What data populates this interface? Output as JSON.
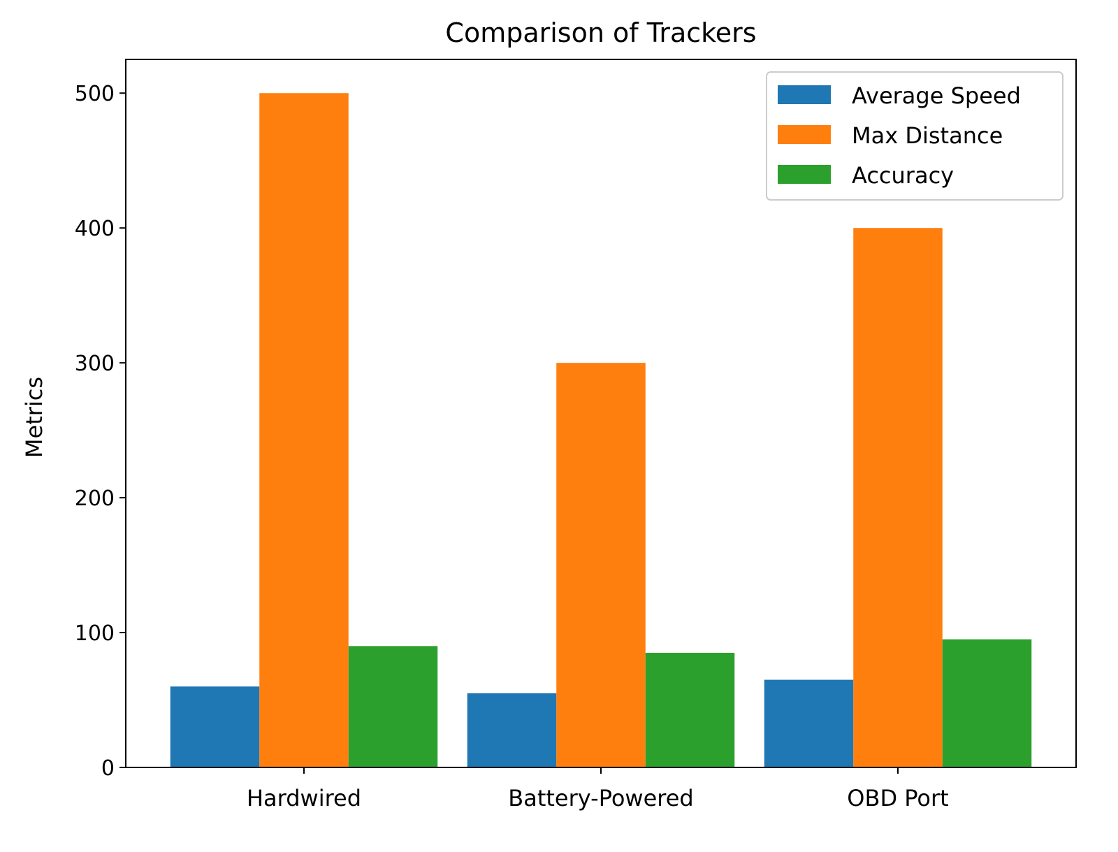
{
  "chart_data": {
    "type": "bar",
    "title": "Comparison of Trackers",
    "xlabel": "",
    "ylabel": "Metrics",
    "categories": [
      "Hardwired",
      "Battery-Powered",
      "OBD Port"
    ],
    "series": [
      {
        "name": "Average Speed",
        "values": [
          60,
          55,
          65
        ],
        "color": "#1f77b4"
      },
      {
        "name": "Max Distance",
        "values": [
          500,
          300,
          400
        ],
        "color": "#ff7f0e"
      },
      {
        "name": "Accuracy",
        "values": [
          90,
          85,
          95
        ],
        "color": "#2ca02c"
      }
    ],
    "ylim": [
      0,
      525
    ],
    "yticks": [
      0,
      100,
      200,
      300,
      400,
      500
    ],
    "grid": false,
    "legend_position": "top-right"
  }
}
